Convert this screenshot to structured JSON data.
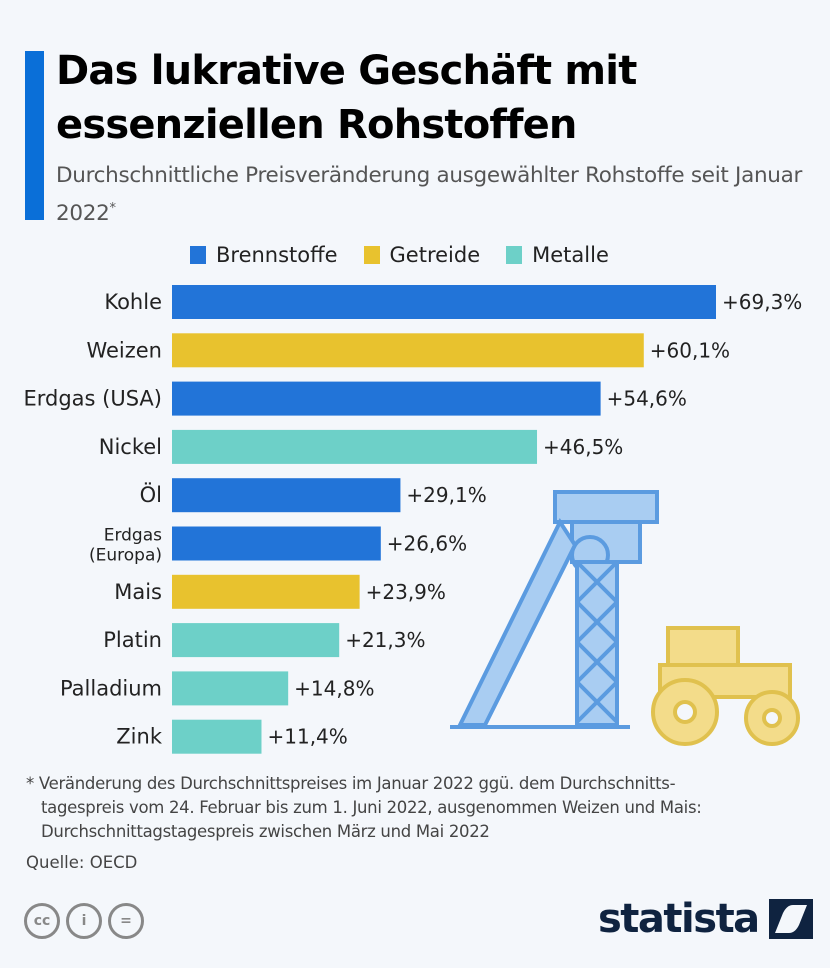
{
  "header": {
    "title": "Das lukrative Geschäft mit essenziellen Rohstoffen",
    "subtitle": "Durchschnittliche Preisveränderung ausgewählter Rohstoffe seit Januar 2022",
    "subtitle_marker": "*"
  },
  "colors": {
    "accent": "#0a6fd8",
    "Brennstoffe": "#2274d8",
    "Getreide": "#e8c22e",
    "Metalle": "#6dd0c8"
  },
  "chart_data": {
    "type": "bar",
    "orientation": "horizontal",
    "title": "Das lukrative Geschäft mit essenziellen Rohstoffen",
    "legend": [
      "Brennstoffe",
      "Getreide",
      "Metalle"
    ],
    "legend_position": "top",
    "grid": false,
    "categories": [
      "Kohle",
      "Weizen",
      "Erdgas (USA)",
      "Nickel",
      "Öl",
      "Erdgas (Europa)",
      "Mais",
      "Platin",
      "Palladium",
      "Zink"
    ],
    "groups": [
      "Brennstoffe",
      "Getreide",
      "Brennstoffe",
      "Metalle",
      "Brennstoffe",
      "Brennstoffe",
      "Getreide",
      "Metalle",
      "Metalle",
      "Metalle"
    ],
    "values": [
      69.3,
      60.1,
      54.6,
      46.5,
      29.1,
      26.6,
      23.9,
      21.3,
      14.8,
      11.4
    ],
    "labels": [
      "+69,3%",
      "+60,1%",
      "+54,6%",
      "+46,5%",
      "+29,1%",
      "+26,6%",
      "+23,9%",
      "+21,3%",
      "+14,8%",
      "+11,4%"
    ],
    "unit": "%"
  },
  "footer": {
    "footnote_lines": [
      "* Veränderung des Durchschnittspreises im Januar 2022 ggü. dem Durchschnitts-",
      "tagespreis vom 24. Februar bis zum 1. Juni 2022, ausgenommen Weizen und Mais:",
      "Durchschnittagstagespreis zwischen März und Mai 2022"
    ],
    "source": "Quelle: OECD",
    "license_icons": [
      "cc-icon",
      "attribution-icon",
      "no-derivatives-icon"
    ],
    "logo": "statista"
  }
}
